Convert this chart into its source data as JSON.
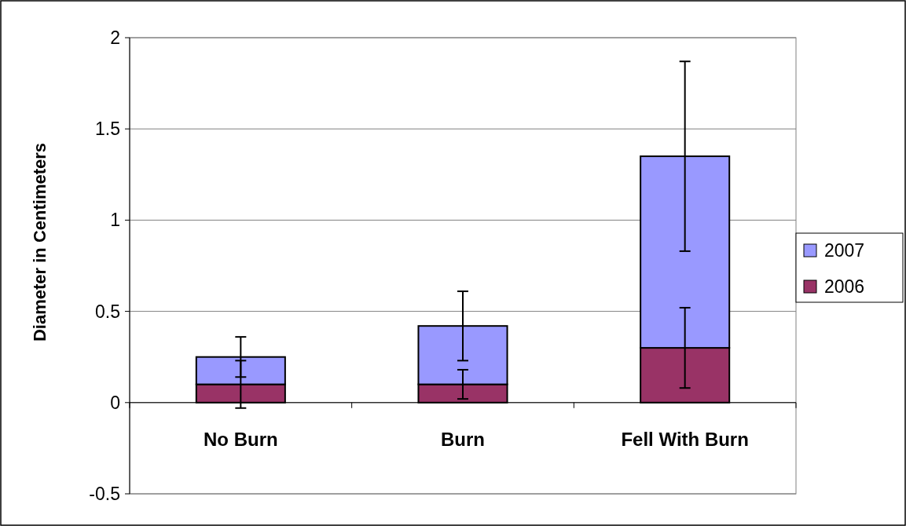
{
  "chart_data": {
    "type": "bar",
    "stacked": true,
    "ylabel": "Diameter in Centimeters",
    "categories": [
      "No Burn",
      "Burn",
      "Fell With Burn"
    ],
    "series": [
      {
        "name": "2006",
        "color": "#993366",
        "values": [
          0.1,
          0.1,
          0.3
        ],
        "errors": [
          0.13,
          0.08,
          0.22
        ]
      },
      {
        "name": "2007",
        "color": "#9999ff",
        "values": [
          0.15,
          0.32,
          1.05
        ],
        "errors": [
          0.11,
          0.19,
          0.52
        ]
      }
    ],
    "ylim": [
      -0.5,
      2
    ],
    "yticks": [
      -0.5,
      0,
      0.5,
      1,
      1.5,
      2
    ],
    "grid": "y",
    "legend": "right"
  }
}
